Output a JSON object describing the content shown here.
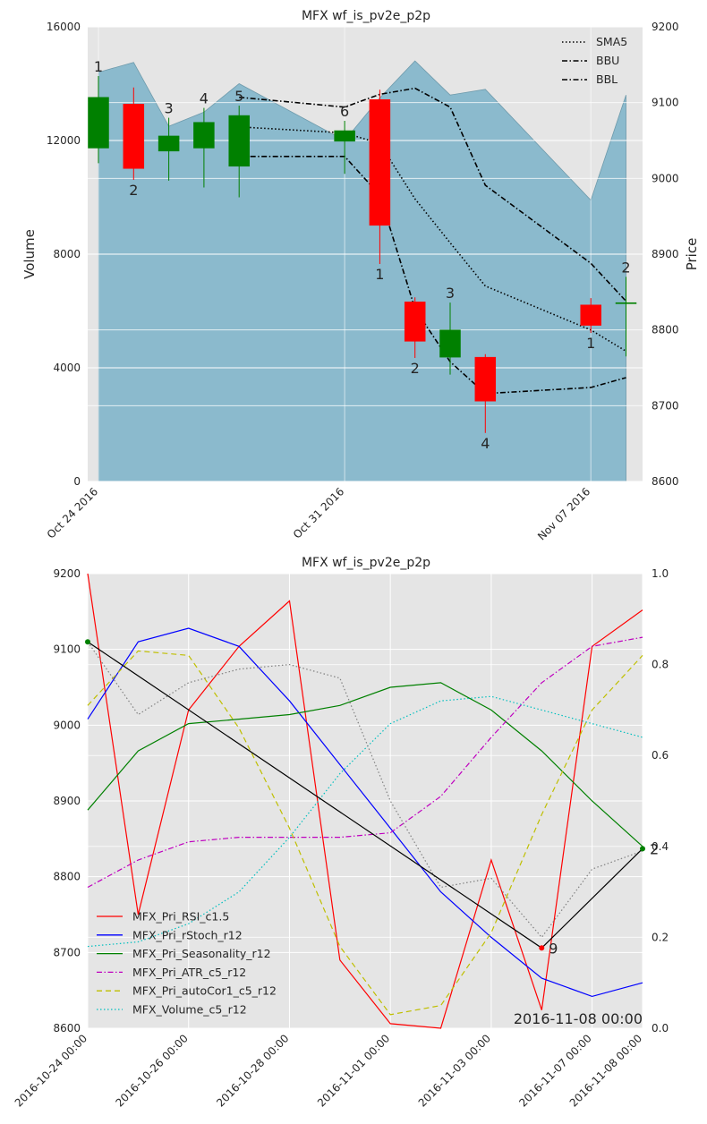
{
  "chart_data": [
    {
      "type": "candlestick",
      "title": "MFX wf_is_pv2e_p2p",
      "ylabel_left": "Volume",
      "ylabel_right": "Price",
      "ylim_left": [
        0,
        16000
      ],
      "ylim_right": [
        8600,
        9200
      ],
      "yticks_left": [
        "0",
        "4000",
        "8000",
        "12000",
        "16000"
      ],
      "yticks_right": [
        "8600",
        "8700",
        "8800",
        "8900",
        "9000",
        "9100",
        "9200"
      ],
      "x_tick_labels": [
        {
          "day": 0,
          "label": "Oct 24 2016"
        },
        {
          "day": 7,
          "label": "Oct 31 2016"
        },
        {
          "day": 14,
          "label": "Nov 07 2016"
        }
      ],
      "volume": [
        {
          "day": 0,
          "value": 14400
        },
        {
          "day": 1,
          "value": 14750
        },
        {
          "day": 2,
          "value": 12500
        },
        {
          "day": 3,
          "value": 13000
        },
        {
          "day": 4,
          "value": 14000
        },
        {
          "day": 7,
          "value": 12000
        },
        {
          "day": 8,
          "value": 13500
        },
        {
          "day": 9,
          "value": 14800
        },
        {
          "day": 10,
          "value": 13600
        },
        {
          "day": 11,
          "value": 13800
        },
        {
          "day": 14,
          "value": 9900
        },
        {
          "day": 15,
          "value": 13600
        }
      ],
      "candles": [
        {
          "day": 0,
          "open": 9040,
          "close": 9107,
          "high": 9135,
          "low": 9020,
          "label": "1"
        },
        {
          "day": 1,
          "open": 9098,
          "close": 9013,
          "high": 9120,
          "low": 8998,
          "label": "2"
        },
        {
          "day": 2,
          "open": 9036,
          "close": 9056,
          "high": 9080,
          "low": 8997,
          "label": "3"
        },
        {
          "day": 3,
          "open": 9040,
          "close": 9074,
          "high": 9093,
          "low": 8988,
          "label": "4"
        },
        {
          "day": 4,
          "open": 9016,
          "close": 9083,
          "high": 9096,
          "low": 8975,
          "label": "5"
        },
        {
          "day": 7,
          "open": 9049,
          "close": 9063,
          "high": 9076,
          "low": 9006,
          "label": "6"
        },
        {
          "day": 8,
          "open": 9104,
          "close": 8938,
          "high": 9117,
          "low": 8887,
          "label": "1"
        },
        {
          "day": 9,
          "open": 8837,
          "close": 8785,
          "high": 8843,
          "low": 8763,
          "label": "2"
        },
        {
          "day": 10,
          "open": 8764,
          "close": 8800,
          "high": 8836,
          "low": 8741,
          "label": "3"
        },
        {
          "day": 11,
          "open": 8764,
          "close": 8706,
          "high": 8768,
          "low": 8664,
          "label": "4"
        },
        {
          "day": 14,
          "open": 8833,
          "close": 8806,
          "high": 8842,
          "low": 8796,
          "label": "1"
        },
        {
          "day": 15,
          "open": 8836,
          "close": 8836,
          "high": 8870,
          "low": 8765,
          "label": "2"
        }
      ],
      "series": [
        {
          "name": "SMA5",
          "style": "dotted",
          "points": [
            [
              4,
              9068
            ],
            [
              7,
              9060
            ],
            [
              8,
              9046
            ],
            [
              9,
              8973
            ],
            [
              10,
              8915
            ],
            [
              11,
              8858
            ],
            [
              14,
              8800
            ],
            [
              15,
              8772
            ]
          ]
        },
        {
          "name": "BBU",
          "style": "dashdot",
          "points": [
            [
              4,
              9107
            ],
            [
              7,
              9094
            ],
            [
              8,
              9111
            ],
            [
              9,
              9119
            ],
            [
              10,
              9094
            ],
            [
              11,
              8991
            ],
            [
              14,
              8888
            ],
            [
              15,
              8838
            ]
          ]
        },
        {
          "name": "BBL",
          "style": "dashdot",
          "points": [
            [
              4,
              9029
            ],
            [
              7,
              9029
            ],
            [
              8,
              8978
            ],
            [
              9,
              8828
            ],
            [
              10,
              8758
            ],
            [
              11,
              8716
            ],
            [
              14,
              8724
            ],
            [
              15,
              8737
            ]
          ]
        }
      ],
      "legend_position": "top-right",
      "grid": true
    },
    {
      "type": "line",
      "title": "MFX wf_is_pv2e_p2p",
      "ylim_left": [
        8600,
        9200
      ],
      "ylim_right": [
        0.0,
        1.0
      ],
      "yticks_left": [
        "8600",
        "8700",
        "8800",
        "8900",
        "9000",
        "9100",
        "9200"
      ],
      "yticks_right": [
        "0.0",
        "0.2",
        "0.4",
        "0.6",
        "0.8",
        "1.0"
      ],
      "x_tick_labels": [
        "2016-10-24 00:00",
        "2016-10-26 00:00",
        "2016-10-28 00:00",
        "2016-11-01 00:00",
        "2016-11-03 00:00",
        "2016-11-07 00:00",
        "2016-11-08 00:00"
      ],
      "x_dates": [
        "2016-10-24",
        "2016-10-25",
        "2016-10-26",
        "2016-10-27",
        "2016-10-28",
        "2016-10-31",
        "2016-11-01",
        "2016-11-02",
        "2016-11-03",
        "2016-11-04",
        "2016-11-07",
        "2016-11-08"
      ],
      "series": [
        {
          "name": "MFX_Pri_RSI_c1.5",
          "color": "#ff0000",
          "style": "solid",
          "values": [
            1.0,
            0.25,
            0.7,
            0.84,
            0.94,
            0.15,
            0.01,
            0.0,
            0.37,
            0.04,
            0.84,
            0.92
          ]
        },
        {
          "name": "MFX_Pri_rStoch_r12",
          "color": "#0000ff",
          "style": "solid",
          "values": [
            0.68,
            0.85,
            0.88,
            0.84,
            0.72,
            0.58,
            0.44,
            0.3,
            0.2,
            0.11,
            0.07,
            0.1
          ]
        },
        {
          "name": "MFX_Pri_Seasonality_r12",
          "color": "#008000",
          "style": "solid",
          "values": [
            0.48,
            0.61,
            0.67,
            0.68,
            0.69,
            0.71,
            0.75,
            0.76,
            0.7,
            0.61,
            0.5,
            0.4
          ]
        },
        {
          "name": "MFX_Pri_ATR_c5_r12",
          "color": "#bf00bf",
          "style": "dashdot",
          "values": [
            0.31,
            0.37,
            0.41,
            0.42,
            0.42,
            0.42,
            0.43,
            0.51,
            0.64,
            0.76,
            0.84,
            0.86
          ]
        },
        {
          "name": "MFX_Pri_autoCor1_c5_r12",
          "color": "#bfbf00",
          "style": "dashed",
          "values": [
            0.71,
            0.83,
            0.82,
            0.66,
            0.44,
            0.18,
            0.03,
            0.05,
            0.21,
            0.47,
            0.7,
            0.82
          ]
        },
        {
          "name": "MFX_Volume_c5_r12",
          "color": "#00bfbf",
          "style": "dotted",
          "values": [
            0.18,
            0.19,
            0.23,
            0.3,
            0.42,
            0.56,
            0.67,
            0.72,
            0.73,
            0.7,
            0.67,
            0.64
          ]
        },
        {
          "name": "",
          "color": "#808080",
          "style": "dotted",
          "values": [
            0.85,
            0.69,
            0.76,
            0.79,
            0.8,
            0.77,
            0.5,
            0.31,
            0.33,
            0.2,
            0.35,
            0.39
          ]
        }
      ],
      "zigzag": {
        "color": "#000000",
        "points": [
          {
            "date": "2016-10-24",
            "price": 9110,
            "label": ""
          },
          {
            "date": "2016-11-04",
            "price": 8706,
            "label": "9"
          },
          {
            "date": "2016-11-08",
            "price": 8837,
            "label": "2"
          }
        ]
      },
      "annotation": "2016-11-08 00:00",
      "legend_position": "lower-left",
      "grid": true
    }
  ]
}
